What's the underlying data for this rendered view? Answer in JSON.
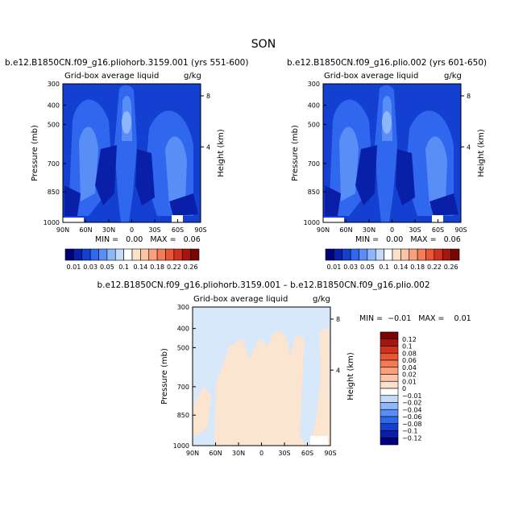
{
  "season_title": "SON",
  "panels": [
    {
      "id": "p1",
      "case_title": "b.e12.B1850CN.f09_g16.pliohorb.3159.001 (yrs 551-600)",
      "subtitle_left": "Grid-box average liquid",
      "subtitle_right": "g/kg",
      "stats": "MIN =   0.00   MAX =   0.06"
    },
    {
      "id": "p2",
      "case_title": "b.e12.B1850CN.f09_g16.plio.002 (yrs 601-650)",
      "subtitle_left": "Grid-box average liquid",
      "subtitle_right": "g/kg",
      "stats": "MIN =   0.00   MAX =   0.06"
    },
    {
      "id": "p3",
      "case_title": "b.e12.B1850CN.f09_g16.pliohorb.3159.001 – b.e12.B1850CN.f09_g16.plio.002",
      "subtitle_left": "Grid-box average liquid",
      "subtitle_right": "g/kg",
      "stats": "MIN =  −0.01   MAX =    0.01"
    }
  ],
  "axes": {
    "ylabel_left": "Pressure (mb)",
    "ylabel_right": "Height (km)",
    "pressure_ticks": [
      "300",
      "400",
      "500",
      "700",
      "850",
      "1000"
    ],
    "height_ticks": [
      "8",
      "4"
    ],
    "lat_ticks": [
      "90N",
      "60N",
      "30N",
      "0",
      "30S",
      "60S",
      "90S"
    ]
  },
  "colorbar_top": {
    "labels": [
      "0.01",
      "0.03",
      "0.05",
      "0.1",
      "0.14",
      "0.18",
      "0.22",
      "0.26"
    ],
    "colors": [
      "#00007a",
      "#0a1fa8",
      "#1340d0",
      "#2f68ee",
      "#5a8ef7",
      "#8eb7fb",
      "#c4daf9",
      "#ffffff",
      "#fde2cb",
      "#fcc4a4",
      "#f9a07c",
      "#f47b55",
      "#e95634",
      "#cf3220",
      "#a8150f",
      "#7a0505"
    ]
  },
  "colorbar_diff": {
    "labels": [
      "0.12",
      "0.1",
      "0.08",
      "0.06",
      "0.04",
      "0.02",
      "0.01",
      "0",
      "−0.01",
      "−0.02",
      "−0.04",
      "−0.06",
      "−0.08",
      "−0.1",
      "−0.12"
    ],
    "colors": [
      "#7a0505",
      "#a8150f",
      "#cf3220",
      "#e95634",
      "#f47b55",
      "#f9a07c",
      "#fcc4a4",
      "#fde2cb",
      "#ffffff",
      "#c4daf9",
      "#8eb7fb",
      "#5a8ef7",
      "#2f68ee",
      "#1340d0",
      "#0a1fa8",
      "#00007a"
    ]
  },
  "palette": {
    "deep": "#00007a",
    "dark": "#0a1fa8",
    "mid": "#1340d0",
    "medium": "#2f68ee",
    "light": "#5a8ef7",
    "pale": "#8eb7fb",
    "diff_neg": "#d7e8fb",
    "diff_pos": "#fbe4d0"
  }
}
